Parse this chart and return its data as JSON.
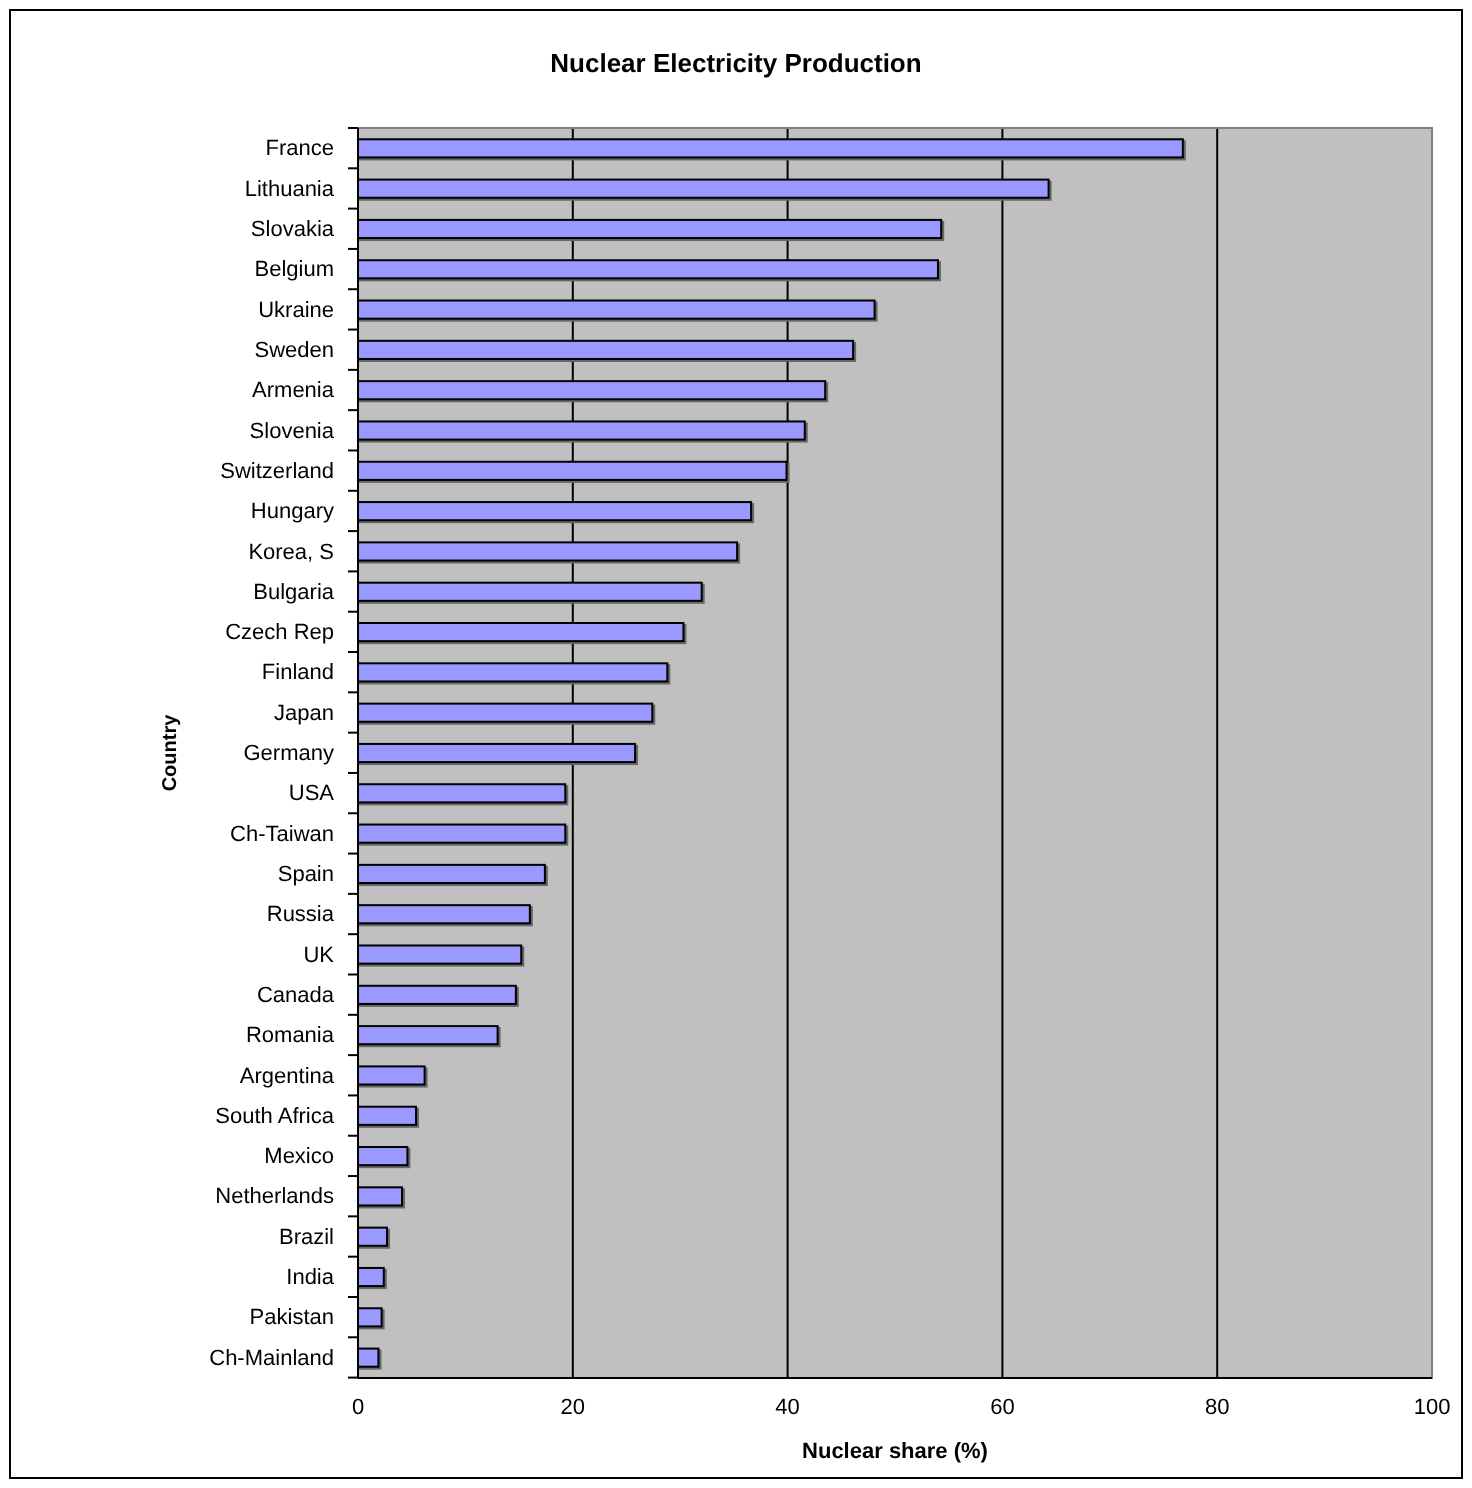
{
  "chart_data": {
    "type": "bar",
    "orientation": "horizontal",
    "title": "Nuclear Electricity Production",
    "xlabel": "Nuclear share (%)",
    "ylabel": "Country",
    "categories": [
      "France",
      "Lithuania",
      "Slovakia",
      "Belgium",
      "Ukraine",
      "Sweden",
      "Armenia",
      "Slovenia",
      "Switzerland",
      "Hungary",
      "Korea, S",
      "Bulgaria",
      "Czech Rep",
      "Finland",
      "Japan",
      "Germany",
      "USA",
      "Ch-Taiwan",
      "Spain",
      "Russia",
      "UK",
      "Canada",
      "Romania",
      "Argentina",
      "South Africa",
      "Mexico",
      "Netherlands",
      "Brazil",
      "India",
      "Pakistan",
      "Ch-Mainland"
    ],
    "values": [
      76.8,
      64.3,
      54.3,
      54.0,
      48.1,
      46.1,
      43.5,
      41.6,
      39.9,
      36.6,
      35.3,
      32.0,
      30.3,
      28.8,
      27.4,
      25.8,
      19.3,
      19.3,
      17.4,
      16.0,
      15.2,
      14.7,
      13.0,
      6.2,
      5.4,
      4.6,
      4.1,
      2.7,
      2.4,
      2.2,
      1.9
    ],
    "color": "#9999ff",
    "xlim": [
      0,
      100
    ],
    "xticks": [
      0,
      20,
      40,
      60,
      80,
      100
    ],
    "grid": "x"
  }
}
